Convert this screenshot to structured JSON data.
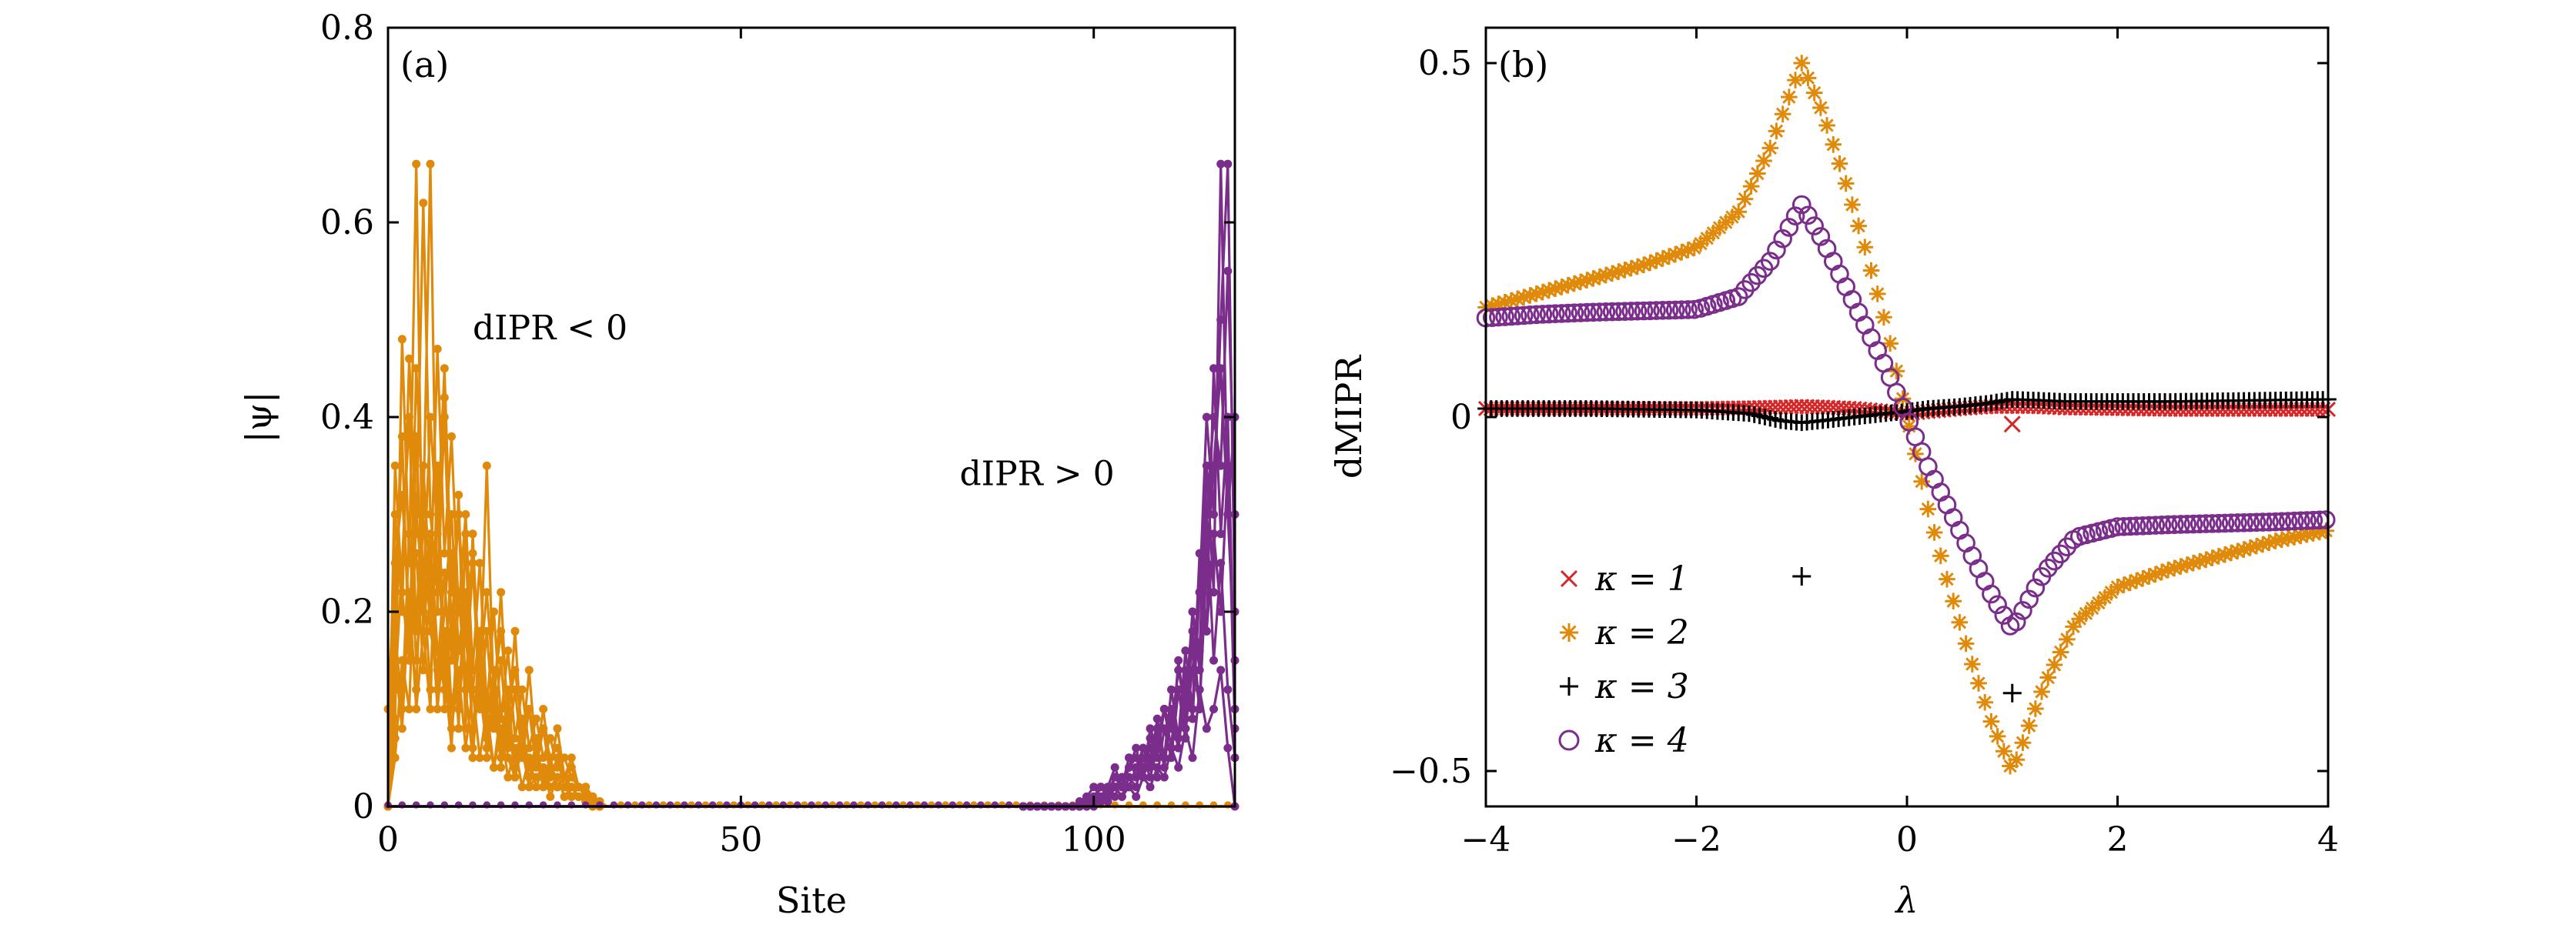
{
  "chart_data": [
    {
      "type": "line",
      "panel_label": "(a)",
      "xlabel": "Site",
      "ylabel": "|ψ|",
      "xlim": [
        0,
        120
      ],
      "ylim": [
        0,
        0.8
      ],
      "xticks": [
        0,
        50,
        100
      ],
      "xtick_labels": [
        "0",
        "50",
        "100"
      ],
      "yticks": [
        0,
        0.2,
        0.4,
        0.6,
        0.8
      ],
      "ytick_labels": [
        "0",
        "0.2",
        "0.4",
        "0.6",
        "0.8"
      ],
      "grid": false,
      "annotations": [
        {
          "text": "dIPR < 0",
          "x": 12,
          "y": 0.48
        },
        {
          "text": "dIPR > 0",
          "x": 81,
          "y": 0.33
        }
      ],
      "series": [
        {
          "group": "dIPR<0",
          "color": "#e08a0b",
          "values": [
            0,
            0.09,
            0.48,
            0.25,
            0.66,
            0.18,
            0.1,
            0.35,
            0.14,
            0.06,
            0.22,
            0.12,
            0.05,
            0.15,
            0.08,
            0.04,
            0.1,
            0.05,
            0.03,
            0.06,
            0.02,
            0.03,
            0.04,
            0.02,
            0.03,
            0.01,
            0.02,
            0.01,
            0.015,
            0.01,
            0.005
          ]
        },
        {
          "group": "dIPR<0",
          "color": "#e08a0b",
          "values": [
            0,
            0.3,
            0.2,
            0.46,
            0.28,
            0.62,
            0.3,
            0.22,
            0.4,
            0.18,
            0.3,
            0.12,
            0.25,
            0.1,
            0.18,
            0.08,
            0.15,
            0.06,
            0.12,
            0.05,
            0.1,
            0.04,
            0.08,
            0.03,
            0.05,
            0.02,
            0.03,
            0.02,
            0.01,
            0.01,
            0.005
          ]
        },
        {
          "group": "dIPR<0",
          "color": "#e08a0b",
          "values": [
            0,
            0.2,
            0.38,
            0.15,
            0.45,
            0.3,
            0.66,
            0.2,
            0.42,
            0.15,
            0.32,
            0.08,
            0.28,
            0.12,
            0.35,
            0.1,
            0.22,
            0.08,
            0.18,
            0.06,
            0.14,
            0.05,
            0.1,
            0.04,
            0.08,
            0.03,
            0.05,
            0.02,
            0.02,
            0.01,
            0.005
          ]
        },
        {
          "group": "dIPR<0",
          "color": "#e08a0b",
          "values": [
            0,
            0.12,
            0.25,
            0.4,
            0.18,
            0.35,
            0.22,
            0.47,
            0.26,
            0.38,
            0.2,
            0.3,
            0.14,
            0.25,
            0.1,
            0.2,
            0.09,
            0.16,
            0.07,
            0.12,
            0.06,
            0.09,
            0.05,
            0.07,
            0.04,
            0.05,
            0.03,
            0.02,
            0.01,
            0.01,
            0.005
          ]
        },
        {
          "group": "dIPR<0",
          "color": "#e08a0b",
          "values": [
            0,
            0.05,
            0.15,
            0.1,
            0.3,
            0.22,
            0.4,
            0.28,
            0.45,
            0.22,
            0.3,
            0.18,
            0.26,
            0.14,
            0.22,
            0.12,
            0.18,
            0.1,
            0.14,
            0.08,
            0.1,
            0.06,
            0.08,
            0.05,
            0.06,
            0.03,
            0.04,
            0.02,
            0.02,
            0.01,
            0.005
          ]
        },
        {
          "group": "dIPR<0",
          "color": "#e08a0b",
          "values": [
            0,
            0.18,
            0.1,
            0.28,
            0.15,
            0.24,
            0.12,
            0.32,
            0.1,
            0.2,
            0.08,
            0.28,
            0.06,
            0.18,
            0.05,
            0.14,
            0.04,
            0.12,
            0.03,
            0.09,
            0.02,
            0.07,
            0.02,
            0.05,
            0.02,
            0.03,
            0.01,
            0.02,
            0.01,
            0.005,
            0
          ]
        },
        {
          "group": "dIPR<0",
          "color": "#e08a0b",
          "values": [
            0.1,
            0.25,
            0.32,
            0.2,
            0.12,
            0.3,
            0.18,
            0.14,
            0.24,
            0.1,
            0.16,
            0.2,
            0.08,
            0.12,
            0.06,
            0.1,
            0.05,
            0.08,
            0.04,
            0.06,
            0.03,
            0.05,
            0.02,
            0.04,
            0.02,
            0.02,
            0.01,
            0.01,
            0.005,
            0,
            0
          ]
        },
        {
          "group": "dIPR<0",
          "color": "#e08a0b",
          "values": [
            0,
            0.07,
            0.12,
            0.2,
            0.26,
            0.14,
            0.22,
            0.1,
            0.18,
            0.08,
            0.14,
            0.06,
            0.12,
            0.05,
            0.1,
            0.04,
            0.08,
            0.03,
            0.06,
            0.02,
            0.05,
            0.02,
            0.04,
            0.01,
            0.03,
            0.01,
            0.02,
            0.01,
            0.005,
            0,
            0
          ]
        },
        {
          "group": "dIPR<0",
          "color": "#e08a0b",
          "values": [
            0,
            0.35,
            0.22,
            0.15,
            0.38,
            0.2,
            0.28,
            0.16,
            0.12,
            0.26,
            0.1,
            0.18,
            0.08,
            0.14,
            0.07,
            0.12,
            0.06,
            0.09,
            0.05,
            0.07,
            0.04,
            0.05,
            0.03,
            0.04,
            0.02,
            0.03,
            0.01,
            0.02,
            0.01,
            0.005,
            0
          ]
        },
        {
          "group": "dIPR<0",
          "color": "#e08a0b",
          "values": [
            0,
            0.15,
            0.08,
            0.22,
            0.1,
            0.18,
            0.26,
            0.12,
            0.2,
            0.3,
            0.16,
            0.22,
            0.12,
            0.18,
            0.09,
            0.14,
            0.07,
            0.1,
            0.05,
            0.08,
            0.04,
            0.06,
            0.03,
            0.04,
            0.02,
            0.03,
            0.02,
            0.01,
            0.01,
            0.005,
            0
          ]
        },
        {
          "group": "dIPR>0",
          "color": "#7b2d8b",
          "values": [
            0,
            0,
            0,
            0,
            0,
            0,
            0,
            0,
            0,
            0.005,
            0.01,
            0.005,
            0.01,
            0.02,
            0.01,
            0.02,
            0.01,
            0.03,
            0.02,
            0.04,
            0.03,
            0.06,
            0.04,
            0.08,
            0.05,
            0.12,
            0.08,
            0.1,
            0.14,
            0.06,
            0
          ]
        },
        {
          "group": "dIPR>0",
          "color": "#7b2d8b",
          "values": [
            0,
            0,
            0,
            0,
            0,
            0,
            0,
            0,
            0.005,
            0.01,
            0.005,
            0.02,
            0.01,
            0.03,
            0.02,
            0.05,
            0.03,
            0.04,
            0.06,
            0.03,
            0.08,
            0.05,
            0.12,
            0.07,
            0.18,
            0.1,
            0.3,
            0.15,
            0.25,
            0.12,
            0.05
          ]
        },
        {
          "group": "dIPR>0",
          "color": "#7b2d8b",
          "values": [
            0,
            0,
            0,
            0,
            0,
            0,
            0,
            0,
            0,
            0.005,
            0.01,
            0.02,
            0.01,
            0.03,
            0.02,
            0.04,
            0.06,
            0.03,
            0.07,
            0.05,
            0.1,
            0.06,
            0.15,
            0.09,
            0.2,
            0.16,
            0.35,
            0.22,
            0.66,
            0.3,
            0.15
          ]
        },
        {
          "group": "dIPR>0",
          "color": "#7b2d8b",
          "values": [
            0,
            0,
            0,
            0,
            0,
            0,
            0,
            0,
            0,
            0,
            0.005,
            0.01,
            0.02,
            0.01,
            0.03,
            0.02,
            0.04,
            0.03,
            0.05,
            0.08,
            0.04,
            0.1,
            0.06,
            0.14,
            0.09,
            0.22,
            0.4,
            0.3,
            0.5,
            0.66,
            0.2
          ]
        },
        {
          "group": "dIPR>0",
          "color": "#7b2d8b",
          "values": [
            0,
            0,
            0,
            0,
            0,
            0,
            0,
            0,
            0.005,
            0.01,
            0.02,
            0.01,
            0.02,
            0.04,
            0.02,
            0.05,
            0.03,
            0.06,
            0.04,
            0.09,
            0.05,
            0.12,
            0.07,
            0.16,
            0.1,
            0.26,
            0.18,
            0.45,
            0.28,
            0.4,
            0.1
          ]
        },
        {
          "group": "dIPR>0",
          "color": "#7b2d8b",
          "values": [
            0,
            0,
            0,
            0,
            0,
            0,
            0,
            0,
            0,
            0.005,
            0.01,
            0.005,
            0.015,
            0.03,
            0.02,
            0.04,
            0.05,
            0.03,
            0.08,
            0.06,
            0.1,
            0.08,
            0.14,
            0.1,
            0.2,
            0.14,
            0.3,
            0.4,
            0.35,
            0.55,
            0.3
          ]
        },
        {
          "group": "dIPR>0",
          "color": "#7b2d8b",
          "values": [
            0,
            0,
            0,
            0,
            0,
            0,
            0,
            0,
            0,
            0,
            0,
            0.01,
            0.005,
            0.02,
            0.01,
            0.03,
            0.02,
            0.05,
            0.03,
            0.06,
            0.05,
            0.09,
            0.06,
            0.12,
            0.16,
            0.1,
            0.25,
            0.35,
            0.45,
            0.3,
            0.4
          ]
        },
        {
          "group": "dIPR>0",
          "color": "#7b2d8b",
          "values": [
            0,
            0,
            0,
            0,
            0,
            0,
            0,
            0,
            0,
            0.005,
            0.01,
            0.02,
            0.01,
            0.02,
            0.03,
            0.02,
            0.04,
            0.06,
            0.04,
            0.07,
            0.1,
            0.06,
            0.12,
            0.08,
            0.14,
            0.22,
            0.18,
            0.28,
            0.2,
            0.35,
            0.08
          ]
        }
      ]
    },
    {
      "type": "scatter",
      "panel_label": "(b)",
      "xlabel": "λ",
      "ylabel": "dMIPR",
      "xlim": [
        -4,
        4
      ],
      "ylim": [
        -0.55,
        0.55
      ],
      "xticks": [
        -4,
        -2,
        0,
        2,
        4
      ],
      "xtick_labels": [
        "−4",
        "−2",
        "0",
        "2",
        "4"
      ],
      "yticks": [
        -0.5,
        0,
        0.5
      ],
      "ytick_labels": [
        "−0.5",
        "0",
        "0.5"
      ],
      "grid": false,
      "legend_position": "lower-left",
      "series": [
        {
          "name": "κ = 1",
          "marker": "x",
          "color": "#d62728",
          "x": [
            -4.0,
            -3.5,
            -3.0,
            -2.5,
            -2.0,
            -1.5,
            -1.2,
            -1.0,
            -0.8,
            -0.5,
            -0.2,
            0.0,
            0.2,
            0.5,
            0.8,
            1.2,
            1.5,
            2.0,
            2.5,
            3.0,
            3.5,
            4.0
          ],
          "y": [
            0.012,
            0.012,
            0.012,
            0.012,
            0.012,
            0.013,
            0.014,
            0.015,
            0.014,
            0.012,
            0.008,
            0.005,
            0.008,
            0.012,
            0.015,
            0.015,
            0.013,
            0.012,
            0.011,
            0.011,
            0.011,
            0.011
          ]
        },
        {
          "name": "κ = 2",
          "marker": "asterisk",
          "color": "#e08a0b",
          "x": [
            -4.0,
            -3.5,
            -3.0,
            -2.5,
            -2.0,
            -1.6,
            -1.3,
            -1.0,
            -0.8,
            -0.6,
            -0.4,
            -0.2,
            0.0,
            0.2,
            0.4,
            0.6,
            0.8,
            1.0,
            1.3,
            1.6,
            2.0,
            2.5,
            3.0,
            3.5,
            4.0
          ],
          "y": [
            0.155,
            0.175,
            0.195,
            0.215,
            0.24,
            0.29,
            0.38,
            0.5,
            0.43,
            0.34,
            0.24,
            0.13,
            0.0,
            -0.13,
            -0.24,
            -0.34,
            -0.43,
            -0.5,
            -0.38,
            -0.29,
            -0.24,
            -0.215,
            -0.195,
            -0.175,
            -0.16
          ]
        },
        {
          "name": "κ = 3",
          "marker": "plus",
          "color": "#000000",
          "x": [
            -4.0,
            -3.5,
            -3.0,
            -2.5,
            -2.0,
            -1.5,
            -1.2,
            -1.0,
            -0.8,
            -0.5,
            -0.2,
            0.0,
            0.2,
            0.5,
            0.8,
            1.0,
            1.2,
            1.5,
            2.0,
            2.5,
            3.0,
            3.5,
            4.0
          ],
          "y": [
            0.012,
            0.012,
            0.012,
            0.011,
            0.01,
            0.005,
            -0.005,
            -0.008,
            -0.005,
            0.0,
            0.005,
            0.008,
            0.012,
            0.015,
            0.02,
            0.025,
            0.024,
            0.022,
            0.022,
            0.022,
            0.023,
            0.024,
            0.025
          ]
        },
        {
          "name": "κ = 4",
          "marker": "circle",
          "color": "#7b2d8b",
          "x": [
            -4.0,
            -3.5,
            -3.0,
            -2.5,
            -2.0,
            -1.6,
            -1.3,
            -1.0,
            -0.8,
            -0.6,
            -0.4,
            -0.2,
            0.0,
            0.2,
            0.4,
            0.6,
            0.8,
            1.0,
            1.3,
            1.6,
            2.0,
            2.5,
            3.0,
            3.5,
            4.0
          ],
          "y": [
            0.14,
            0.145,
            0.148,
            0.15,
            0.152,
            0.17,
            0.22,
            0.3,
            0.25,
            0.19,
            0.13,
            0.07,
            0.0,
            -0.07,
            -0.13,
            -0.19,
            -0.25,
            -0.3,
            -0.22,
            -0.17,
            -0.155,
            -0.152,
            -0.15,
            -0.148,
            -0.145
          ]
        }
      ],
      "outliers": [
        {
          "series": "κ = 1",
          "x": 1.0,
          "y": -0.01
        },
        {
          "series": "κ = 3",
          "x": -1.0,
          "y": -0.225
        },
        {
          "series": "κ = 3",
          "x": 1.0,
          "y": -0.39
        }
      ]
    }
  ]
}
